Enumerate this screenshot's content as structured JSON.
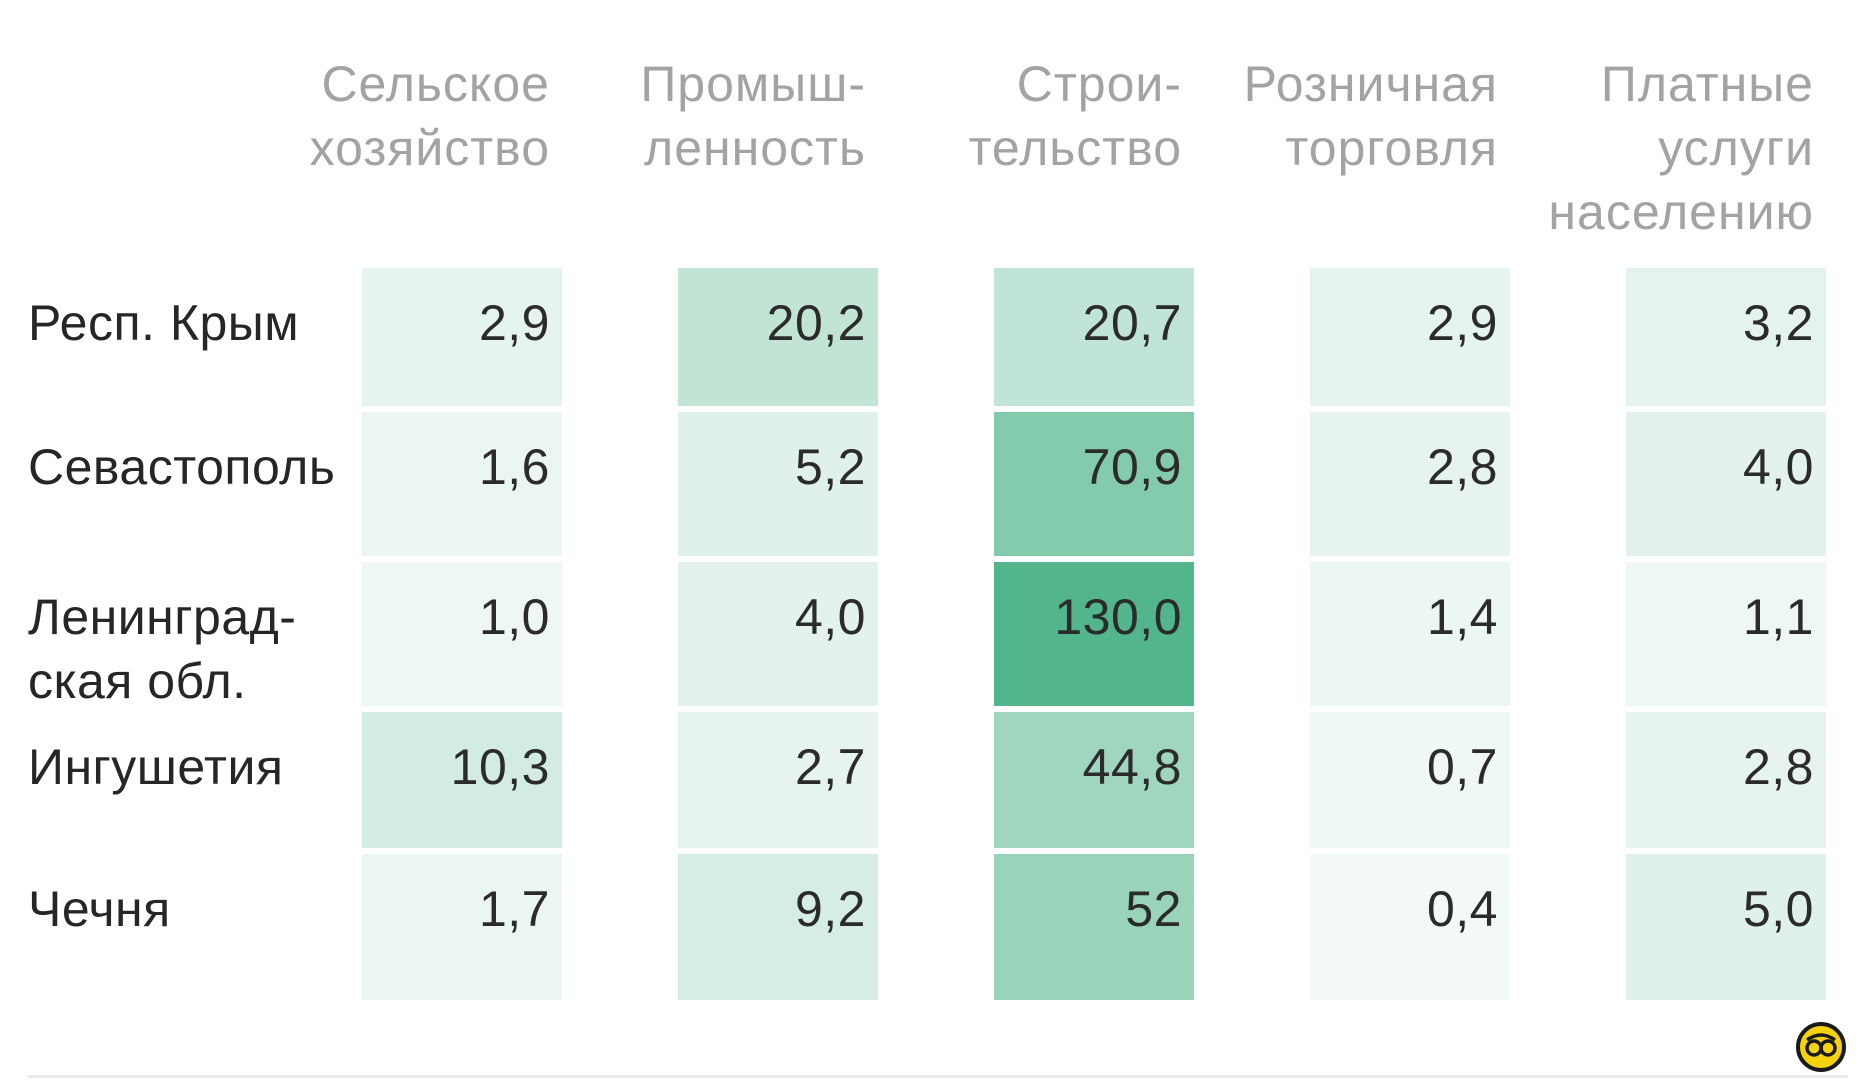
{
  "chart_data": {
    "type": "heatmap",
    "columns": [
      {
        "label_lines": [
          "Сельское",
          "хозяйство"
        ]
      },
      {
        "label_lines": [
          "Промыш-",
          "ленность"
        ]
      },
      {
        "label_lines": [
          "Строи-",
          "тельство"
        ]
      },
      {
        "label_lines": [
          "Розничная",
          "торговля"
        ]
      },
      {
        "label_lines": [
          "Платные",
          "услуги",
          "населению"
        ]
      }
    ],
    "rows": [
      {
        "label_lines": [
          "Респ. Крым"
        ],
        "values": [
          "2,9",
          "20,2",
          "20,7",
          "2,9",
          "3,2"
        ]
      },
      {
        "label_lines": [
          "Севастополь"
        ],
        "values": [
          "1,6",
          "5,2",
          "70,9",
          "2,8",
          "4,0"
        ]
      },
      {
        "label_lines": [
          "Ленинград-",
          "ская обл."
        ],
        "values": [
          "1,0",
          "4,0",
          "130,0",
          "1,4",
          "1,1"
        ]
      },
      {
        "label_lines": [
          "Ингушетия"
        ],
        "values": [
          "10,3",
          "2,7",
          "44,8",
          "0,7",
          "2,8"
        ]
      },
      {
        "label_lines": [
          "Чечня"
        ],
        "values": [
          "1,7",
          "9,2",
          "52",
          "0,4",
          "5,0"
        ]
      }
    ],
    "color_scale": {
      "low": "#f7fbf9",
      "high": "#52b58c"
    }
  },
  "logo_icon": "round-yellow-logo-icon"
}
